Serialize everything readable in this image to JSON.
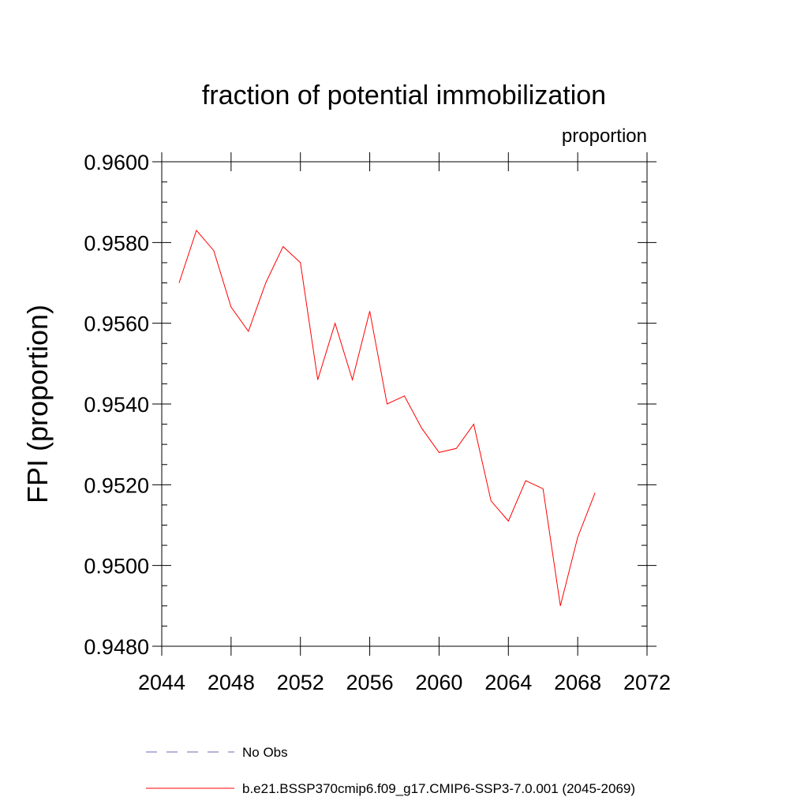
{
  "chart_data": {
    "type": "line",
    "title": "fraction of potential immobilization",
    "units_label": "proportion",
    "ylabel": "FPI  (proportion)",
    "xlabel": "",
    "xlim": [
      2044,
      2072
    ],
    "ylim": [
      0.948,
      0.96
    ],
    "x_ticks": [
      2044,
      2048,
      2052,
      2056,
      2060,
      2064,
      2068,
      2072
    ],
    "x_tick_labels": [
      "2044",
      "2048",
      "2052",
      "2056",
      "2060",
      "2064",
      "2068",
      "2072"
    ],
    "y_ticks": [
      0.948,
      0.95,
      0.952,
      0.954,
      0.956,
      0.958,
      0.96
    ],
    "y_tick_labels": [
      "0.9480",
      "0.9500",
      "0.9520",
      "0.9540",
      "0.9560",
      "0.9580",
      "0.9600"
    ],
    "grid": false,
    "legend_position": "bottom",
    "series": [
      {
        "name": "b.e21.BSSP370cmip6.f09_g17.CMIP6-SSP3-7.0.001 (2045-2069)",
        "color": "#ff0000",
        "style": "solid",
        "x": [
          2045,
          2046,
          2047,
          2048,
          2049,
          2050,
          2051,
          2052,
          2053,
          2054,
          2055,
          2056,
          2057,
          2058,
          2059,
          2060,
          2061,
          2062,
          2063,
          2064,
          2065,
          2066,
          2067,
          2068,
          2069
        ],
        "y": [
          0.957,
          0.9583,
          0.9578,
          0.9564,
          0.9558,
          0.957,
          0.9579,
          0.9575,
          0.9546,
          0.956,
          0.9546,
          0.9563,
          0.954,
          0.9542,
          0.9534,
          0.9528,
          0.9529,
          0.9535,
          0.9516,
          0.9511,
          0.9521,
          0.9519,
          0.949,
          0.9507,
          0.9518
        ]
      }
    ],
    "legend": [
      {
        "label": "No Obs",
        "color": "#6a6ab0",
        "style": "dashed"
      },
      {
        "label": "b.e21.BSSP370cmip6.f09_g17.CMIP6-SSP3-7.0.001 (2045-2069)",
        "color": "#ff0000",
        "style": "solid"
      }
    ]
  }
}
